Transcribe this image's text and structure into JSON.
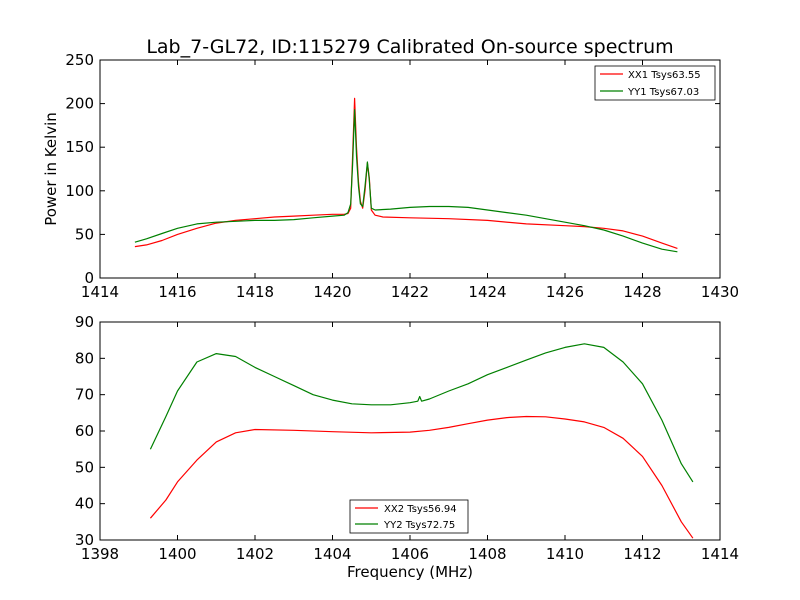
{
  "figure_title": "Lab_7-GL72, ID:115279 Calibrated On-source spectrum",
  "chart_data": [
    {
      "type": "line",
      "title": "Lab_7-GL72, ID:115279 Calibrated On-source spectrum",
      "xlabel": "",
      "ylabel": "Power in Kelvin",
      "xlim": [
        1414,
        1430
      ],
      "ylim": [
        0,
        250
      ],
      "xticks": [
        "1414",
        "1416",
        "1418",
        "1420",
        "1422",
        "1424",
        "1426",
        "1428",
        "1430"
      ],
      "yticks": [
        "0",
        "50",
        "100",
        "150",
        "200",
        "250"
      ],
      "grid": false,
      "legend_position": "top-right",
      "series": [
        {
          "name": "XX1 Tsys63.55",
          "color": "#ff0000",
          "points": [
            [
              1414.9,
              36
            ],
            [
              1415.2,
              38
            ],
            [
              1415.6,
              43
            ],
            [
              1416.0,
              50
            ],
            [
              1416.5,
              57
            ],
            [
              1417.0,
              63
            ],
            [
              1417.5,
              66
            ],
            [
              1418.0,
              68
            ],
            [
              1418.5,
              70
            ],
            [
              1419.0,
              71
            ],
            [
              1419.5,
              72
            ],
            [
              1420.0,
              73
            ],
            [
              1420.3,
              73
            ],
            [
              1420.4,
              74
            ],
            [
              1420.47,
              80
            ],
            [
              1420.52,
              140
            ],
            [
              1420.57,
              206
            ],
            [
              1420.62,
              150
            ],
            [
              1420.67,
              110
            ],
            [
              1420.72,
              88
            ],
            [
              1420.78,
              80
            ],
            [
              1420.84,
              100
            ],
            [
              1420.9,
              132
            ],
            [
              1420.95,
              115
            ],
            [
              1421.0,
              78
            ],
            [
              1421.1,
              72
            ],
            [
              1421.3,
              70
            ],
            [
              1422.0,
              69
            ],
            [
              1423.0,
              68
            ],
            [
              1424.0,
              66
            ],
            [
              1425.0,
              62
            ],
            [
              1426.0,
              60
            ],
            [
              1426.5,
              59
            ],
            [
              1427.0,
              57
            ],
            [
              1427.5,
              54
            ],
            [
              1428.0,
              48
            ],
            [
              1428.5,
              40
            ],
            [
              1428.9,
              34
            ]
          ]
        },
        {
          "name": "YY1 Tsys67.03",
          "color": "#008000",
          "points": [
            [
              1414.9,
              41
            ],
            [
              1415.2,
              45
            ],
            [
              1415.6,
              51
            ],
            [
              1416.0,
              57
            ],
            [
              1416.5,
              62
            ],
            [
              1417.0,
              64
            ],
            [
              1417.5,
              65
            ],
            [
              1418.0,
              66
            ],
            [
              1418.5,
              66
            ],
            [
              1419.0,
              67
            ],
            [
              1419.5,
              69
            ],
            [
              1420.0,
              71
            ],
            [
              1420.3,
              72
            ],
            [
              1420.4,
              75
            ],
            [
              1420.47,
              85
            ],
            [
              1420.52,
              130
            ],
            [
              1420.57,
              193
            ],
            [
              1420.62,
              140
            ],
            [
              1420.67,
              105
            ],
            [
              1420.72,
              85
            ],
            [
              1420.78,
              82
            ],
            [
              1420.84,
              105
            ],
            [
              1420.9,
              133
            ],
            [
              1420.95,
              112
            ],
            [
              1421.0,
              80
            ],
            [
              1421.1,
              78
            ],
            [
              1421.5,
              79
            ],
            [
              1422.0,
              81
            ],
            [
              1422.5,
              82
            ],
            [
              1423.0,
              82
            ],
            [
              1423.5,
              81
            ],
            [
              1424.0,
              78
            ],
            [
              1424.5,
              75
            ],
            [
              1425.0,
              72
            ],
            [
              1425.5,
              68
            ],
            [
              1426.0,
              64
            ],
            [
              1426.5,
              60
            ],
            [
              1427.0,
              55
            ],
            [
              1427.5,
              48
            ],
            [
              1428.0,
              40
            ],
            [
              1428.5,
              33
            ],
            [
              1428.9,
              30
            ]
          ]
        }
      ]
    },
    {
      "type": "line",
      "title": "",
      "xlabel": "Frequency (MHz)",
      "ylabel": "",
      "xlim": [
        1398,
        1414
      ],
      "ylim": [
        30,
        90
      ],
      "xticks": [
        "1398",
        "1400",
        "1402",
        "1404",
        "1406",
        "1408",
        "1410",
        "1412",
        "1414"
      ],
      "yticks": [
        "30",
        "40",
        "50",
        "60",
        "70",
        "80",
        "90"
      ],
      "grid": false,
      "legend_position": "bottom-center",
      "series": [
        {
          "name": "XX2 Tsys56.94",
          "color": "#ff0000",
          "points": [
            [
              1399.3,
              36
            ],
            [
              1399.7,
              41
            ],
            [
              1400.0,
              46
            ],
            [
              1400.5,
              52
            ],
            [
              1401.0,
              57
            ],
            [
              1401.5,
              59.5
            ],
            [
              1402.0,
              60.4
            ],
            [
              1403.0,
              60.2
            ],
            [
              1404.0,
              59.8
            ],
            [
              1405.0,
              59.5
            ],
            [
              1406.0,
              59.7
            ],
            [
              1406.5,
              60.2
            ],
            [
              1407.0,
              61
            ],
            [
              1407.5,
              62
            ],
            [
              1408.0,
              63
            ],
            [
              1408.5,
              63.7
            ],
            [
              1409.0,
              64
            ],
            [
              1409.5,
              63.9
            ],
            [
              1410.0,
              63.3
            ],
            [
              1410.5,
              62.5
            ],
            [
              1411.0,
              61
            ],
            [
              1411.5,
              58
            ],
            [
              1412.0,
              53
            ],
            [
              1412.5,
              45
            ],
            [
              1413.0,
              35
            ],
            [
              1413.3,
              30.5
            ]
          ]
        },
        {
          "name": "YY2 Tsys72.75",
          "color": "#008000",
          "points": [
            [
              1399.3,
              55
            ],
            [
              1399.7,
              64
            ],
            [
              1400.0,
              71
            ],
            [
              1400.5,
              79
            ],
            [
              1401.0,
              81.3
            ],
            [
              1401.5,
              80.5
            ],
            [
              1402.0,
              77.5
            ],
            [
              1402.5,
              75
            ],
            [
              1403.0,
              72.5
            ],
            [
              1403.5,
              70
            ],
            [
              1404.0,
              68.5
            ],
            [
              1404.5,
              67.5
            ],
            [
              1405.0,
              67.2
            ],
            [
              1405.5,
              67.2
            ],
            [
              1406.0,
              67.8
            ],
            [
              1406.2,
              68.2
            ],
            [
              1406.25,
              69.5
            ],
            [
              1406.3,
              68.2
            ],
            [
              1406.5,
              68.8
            ],
            [
              1407.0,
              71
            ],
            [
              1407.5,
              73
            ],
            [
              1408.0,
              75.5
            ],
            [
              1408.5,
              77.5
            ],
            [
              1409.0,
              79.5
            ],
            [
              1409.5,
              81.5
            ],
            [
              1410.0,
              83
            ],
            [
              1410.5,
              84
            ],
            [
              1411.0,
              83
            ],
            [
              1411.5,
              79
            ],
            [
              1412.0,
              73
            ],
            [
              1412.5,
              63
            ],
            [
              1413.0,
              51
            ],
            [
              1413.3,
              46
            ]
          ]
        }
      ]
    }
  ]
}
